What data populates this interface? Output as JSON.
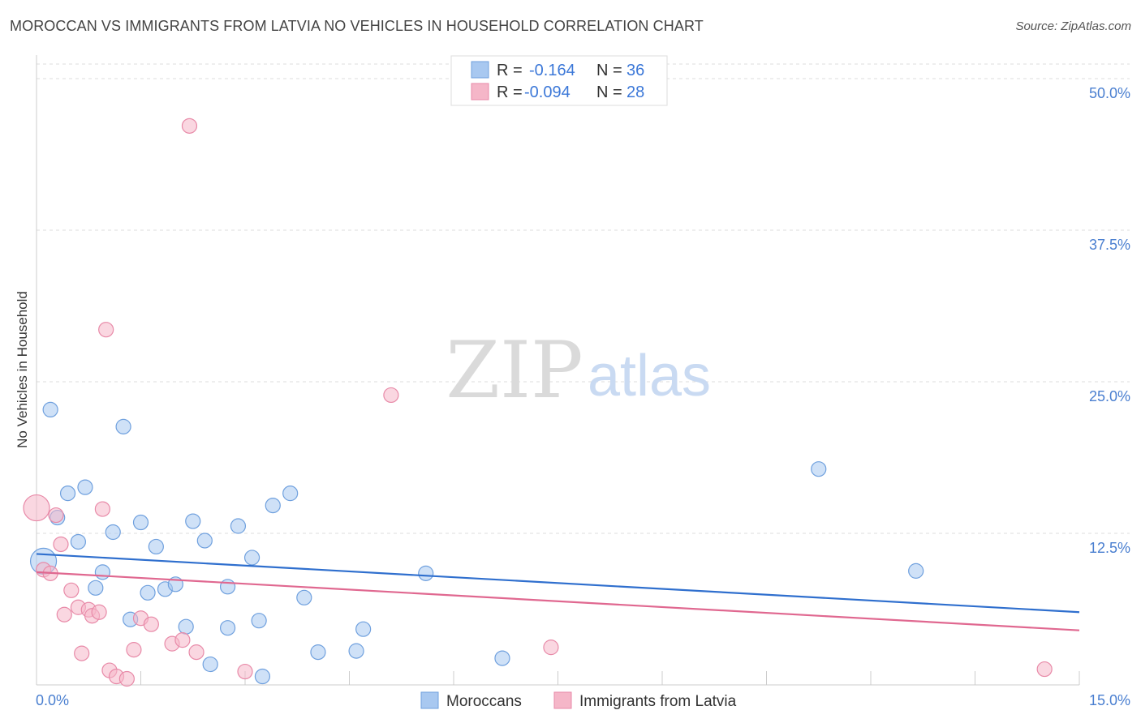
{
  "title": "MOROCCAN VS IMMIGRANTS FROM LATVIA NO VEHICLES IN HOUSEHOLD CORRELATION CHART",
  "source": "Source: ZipAtlas.com",
  "watermark": {
    "zip": "ZIP",
    "atlas": "atlas"
  },
  "legend": {
    "rows": [
      {
        "r_label": "R =",
        "r_value": "-0.164",
        "n_label": "N =",
        "n_value": "36",
        "color": "#a8c8f0"
      },
      {
        "r_label": "R =",
        "r_value": "-0.094",
        "n_label": "N =",
        "n_value": "28",
        "color": "#f5b6c8"
      }
    ]
  },
  "bottom_legend": [
    {
      "label": "Moroccans",
      "color": "#a8c8f0"
    },
    {
      "label": "Immigrants from Latvia",
      "color": "#f5b6c8"
    }
  ],
  "chart_data": {
    "type": "scatter",
    "title": "MOROCCAN VS IMMIGRANTS FROM LATVIA NO VEHICLES IN HOUSEHOLD CORRELATION CHART",
    "xlabel": "",
    "ylabel": "No Vehicles in Household",
    "xlim": [
      0,
      15
    ],
    "ylim": [
      0,
      50
    ],
    "x_tick_labels": [
      "0.0%",
      "15.0%"
    ],
    "y_ticks": [
      12.5,
      25.0,
      37.5,
      50.0
    ],
    "y_tick_labels": [
      "12.5%",
      "25.0%",
      "37.5%",
      "50.0%"
    ],
    "grid": true,
    "series": [
      {
        "name": "Moroccans",
        "color": "#a8c8f0",
        "stroke": "#6fa0de",
        "trend": {
          "x": [
            0,
            15
          ],
          "y": [
            10.8,
            6.0
          ],
          "color": "#2f6fce"
        },
        "points": [
          {
            "x": 0.1,
            "y": 10.2,
            "big": true
          },
          {
            "x": 0.2,
            "y": 22.7
          },
          {
            "x": 0.3,
            "y": 13.8
          },
          {
            "x": 0.45,
            "y": 15.8
          },
          {
            "x": 0.6,
            "y": 11.8
          },
          {
            "x": 0.7,
            "y": 16.3
          },
          {
            "x": 0.85,
            "y": 8.0
          },
          {
            "x": 0.95,
            "y": 9.3
          },
          {
            "x": 1.1,
            "y": 12.6
          },
          {
            "x": 1.25,
            "y": 21.3
          },
          {
            "x": 1.35,
            "y": 5.4
          },
          {
            "x": 1.5,
            "y": 13.4
          },
          {
            "x": 1.6,
            "y": 7.6
          },
          {
            "x": 1.72,
            "y": 11.4
          },
          {
            "x": 1.85,
            "y": 7.9
          },
          {
            "x": 2.0,
            "y": 8.3
          },
          {
            "x": 2.15,
            "y": 4.8
          },
          {
            "x": 2.25,
            "y": 13.5
          },
          {
            "x": 2.42,
            "y": 11.9
          },
          {
            "x": 2.5,
            "y": 1.7
          },
          {
            "x": 2.75,
            "y": 8.1
          },
          {
            "x": 2.75,
            "y": 4.7
          },
          {
            "x": 2.9,
            "y": 13.1
          },
          {
            "x": 3.1,
            "y": 10.5
          },
          {
            "x": 3.2,
            "y": 5.3
          },
          {
            "x": 3.25,
            "y": 0.7
          },
          {
            "x": 3.4,
            "y": 14.8
          },
          {
            "x": 3.65,
            "y": 15.8
          },
          {
            "x": 3.85,
            "y": 7.2
          },
          {
            "x": 4.05,
            "y": 2.7
          },
          {
            "x": 4.6,
            "y": 2.8
          },
          {
            "x": 4.7,
            "y": 4.6
          },
          {
            "x": 5.6,
            "y": 9.2
          },
          {
            "x": 6.7,
            "y": 2.2
          },
          {
            "x": 11.25,
            "y": 17.8
          },
          {
            "x": 12.65,
            "y": 9.4
          }
        ]
      },
      {
        "name": "Immigrants from Latvia",
        "color": "#f5b6c8",
        "stroke": "#e88aa8",
        "trend": {
          "x": [
            0,
            15
          ],
          "y": [
            9.3,
            4.5
          ],
          "color": "#e06890"
        },
        "points": [
          {
            "x": 0.0,
            "y": 14.6,
            "big": true
          },
          {
            "x": 0.1,
            "y": 9.5
          },
          {
            "x": 0.2,
            "y": 9.2
          },
          {
            "x": 0.28,
            "y": 14.0
          },
          {
            "x": 0.35,
            "y": 11.6
          },
          {
            "x": 0.4,
            "y": 5.8
          },
          {
            "x": 0.5,
            "y": 7.8
          },
          {
            "x": 0.6,
            "y": 6.4
          },
          {
            "x": 0.65,
            "y": 2.6
          },
          {
            "x": 0.75,
            "y": 6.2
          },
          {
            "x": 0.8,
            "y": 5.7
          },
          {
            "x": 0.9,
            "y": 6.0
          },
          {
            "x": 0.95,
            "y": 14.5
          },
          {
            "x": 1.0,
            "y": 29.3
          },
          {
            "x": 1.05,
            "y": 1.2
          },
          {
            "x": 1.15,
            "y": 0.7
          },
          {
            "x": 1.3,
            "y": 0.5
          },
          {
            "x": 1.4,
            "y": 2.9
          },
          {
            "x": 1.5,
            "y": 5.5
          },
          {
            "x": 1.65,
            "y": 5.0
          },
          {
            "x": 1.95,
            "y": 3.4
          },
          {
            "x": 2.1,
            "y": 3.7
          },
          {
            "x": 2.2,
            "y": 46.1
          },
          {
            "x": 2.3,
            "y": 2.7
          },
          {
            "x": 3.0,
            "y": 1.1
          },
          {
            "x": 5.1,
            "y": 23.9
          },
          {
            "x": 7.4,
            "y": 3.1
          },
          {
            "x": 14.5,
            "y": 1.3
          }
        ]
      }
    ]
  }
}
